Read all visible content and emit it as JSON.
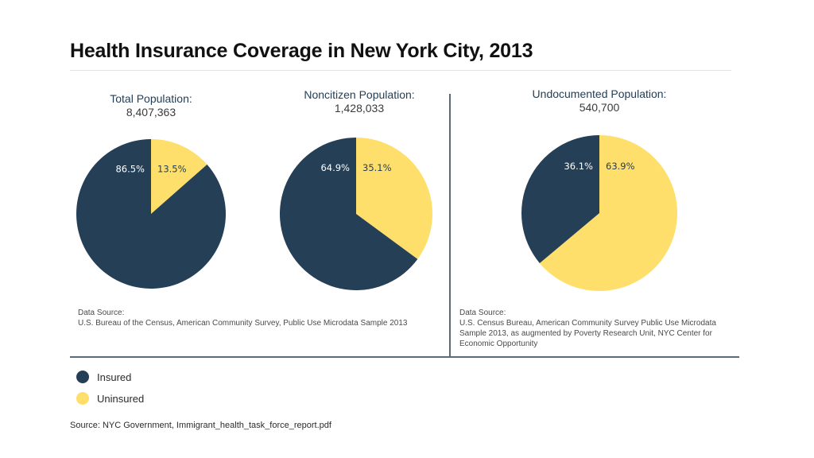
{
  "title": "Health Insurance Coverage in New York City, 2013",
  "colors": {
    "insured": "#253f56",
    "uninsured": "#fedf6b"
  },
  "chart_data": [
    {
      "type": "pie",
      "title": "Total Population:",
      "subtitle": "8,407,363",
      "slices": [
        {
          "category": "Uninsured",
          "value": 13.5,
          "label": "13.5%"
        },
        {
          "category": "Insured",
          "value": 86.5,
          "label": "86.5%"
        }
      ]
    },
    {
      "type": "pie",
      "title": "Noncitizen Population:",
      "subtitle": "1,428,033",
      "slices": [
        {
          "category": "Uninsured",
          "value": 35.1,
          "label": "35.1%"
        },
        {
          "category": "Insured",
          "value": 64.9,
          "label": "64.9%"
        }
      ]
    },
    {
      "type": "pie",
      "title": "Undocumented Population:",
      "subtitle": "540,700",
      "slices": [
        {
          "category": "Uninsured",
          "value": 63.9,
          "label": "63.9%"
        },
        {
          "category": "Insured",
          "value": 36.1,
          "label": "36.1%"
        }
      ]
    }
  ],
  "data_sources": [
    {
      "heading": "Data Source:",
      "lines": [
        "U.S. Bureau of the Census, American Community Survey, Public Use Microdata Sample 2013"
      ]
    },
    {
      "heading": "Data Source:",
      "lines": [
        "U.S. Census Bureau, American Community Survey Public Use Microdata",
        "Sample 2013, as augmented by Poverty Research Unit, NYC Center for",
        "Economic Opportunity"
      ]
    }
  ],
  "legend": [
    {
      "label": "Insured",
      "category": "Insured"
    },
    {
      "label": "Uninsured",
      "category": "Uninsured"
    }
  ],
  "source": "Source: NYC Government, Immigrant_health_task_force_report.pdf"
}
